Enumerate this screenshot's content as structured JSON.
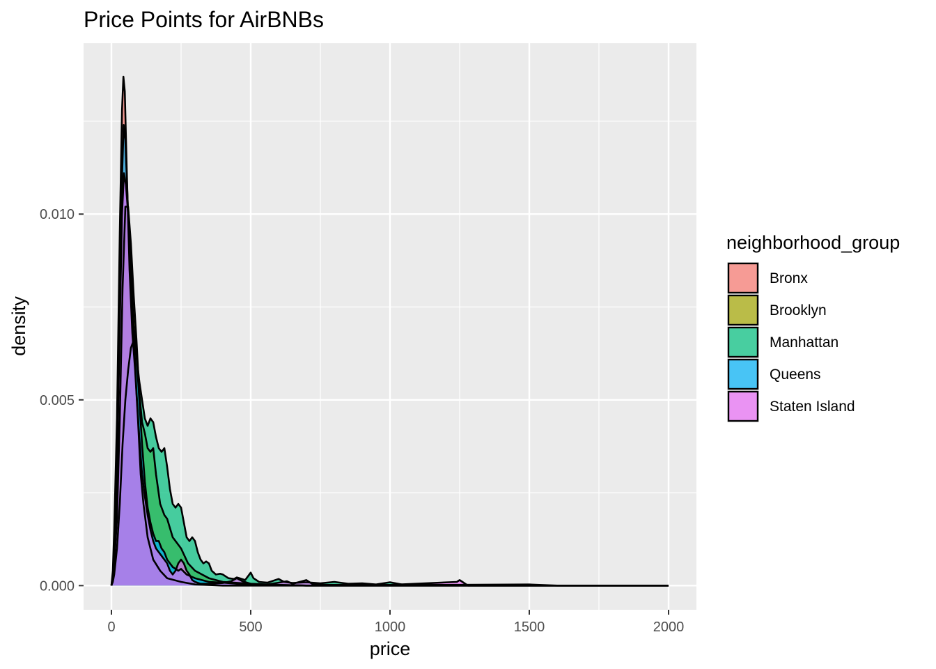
{
  "chart_data": {
    "type": "area",
    "subtype": "density",
    "title": "Price Points for AirBNBs",
    "xlabel": "price",
    "ylabel": "density",
    "xlim": [
      -100,
      2100
    ],
    "ylim": [
      -0.00065,
      0.0146
    ],
    "x_ticks": [
      0,
      500,
      1000,
      1500,
      2000
    ],
    "x_tick_labels": [
      "0",
      "500",
      "1000",
      "1500",
      "2000"
    ],
    "y_ticks": [
      0,
      0.005,
      0.01
    ],
    "y_tick_labels": [
      "0.000",
      "0.005",
      "0.010"
    ],
    "x_minor_ticks": [
      250,
      750,
      1250,
      1750
    ],
    "y_minor_ticks": [
      0.0025,
      0.0075,
      0.0125
    ],
    "grid": true,
    "legend_title": "neighborhood_group",
    "legend_position": "right",
    "series": [
      {
        "name": "Bronx",
        "color": "#F8766D",
        "points": [
          [
            0,
            0
          ],
          [
            5,
            0.0004
          ],
          [
            10,
            0.0015
          ],
          [
            20,
            0.0045
          ],
          [
            30,
            0.0095
          ],
          [
            38,
            0.0128
          ],
          [
            43,
            0.0137
          ],
          [
            48,
            0.0133
          ],
          [
            55,
            0.0112
          ],
          [
            65,
            0.0085
          ],
          [
            75,
            0.0068
          ],
          [
            85,
            0.0058
          ],
          [
            95,
            0.0045
          ],
          [
            105,
            0.003
          ],
          [
            115,
            0.0022
          ],
          [
            130,
            0.0013
          ],
          [
            150,
            0.0007
          ],
          [
            175,
            0.0004
          ],
          [
            200,
            0.0002
          ],
          [
            250,
            0.0001
          ],
          [
            300,
            3e-05
          ],
          [
            400,
            0
          ],
          [
            2000,
            0
          ]
        ]
      },
      {
        "name": "Brooklyn",
        "color": "#A3A500",
        "points": [
          [
            0,
            0
          ],
          [
            5,
            0.0002
          ],
          [
            10,
            0.0006
          ],
          [
            20,
            0.0018
          ],
          [
            30,
            0.0045
          ],
          [
            40,
            0.008
          ],
          [
            50,
            0.0102
          ],
          [
            60,
            0.0102
          ],
          [
            70,
            0.0092
          ],
          [
            80,
            0.0078
          ],
          [
            90,
            0.0066
          ],
          [
            100,
            0.0052
          ],
          [
            110,
            0.0044
          ],
          [
            120,
            0.0041
          ],
          [
            130,
            0.0037
          ],
          [
            140,
            0.0036
          ],
          [
            150,
            0.0037
          ],
          [
            160,
            0.003
          ],
          [
            175,
            0.0022
          ],
          [
            190,
            0.0019
          ],
          [
            200,
            0.0018
          ],
          [
            220,
            0.0013
          ],
          [
            250,
            0.001
          ],
          [
            275,
            0.0006
          ],
          [
            300,
            0.0004
          ],
          [
            350,
            0.0002
          ],
          [
            400,
            0.0001
          ],
          [
            500,
            5e-05
          ],
          [
            600,
            2e-05
          ],
          [
            700,
            0
          ],
          [
            2000,
            0
          ]
        ]
      },
      {
        "name": "Manhattan",
        "color": "#00BF7D",
        "points": [
          [
            0,
            0
          ],
          [
            5,
            0.0001
          ],
          [
            10,
            0.0003
          ],
          [
            20,
            0.001
          ],
          [
            30,
            0.0022
          ],
          [
            40,
            0.0038
          ],
          [
            50,
            0.005
          ],
          [
            60,
            0.0058
          ],
          [
            70,
            0.0064
          ],
          [
            80,
            0.0066
          ],
          [
            90,
            0.0062
          ],
          [
            100,
            0.0055
          ],
          [
            110,
            0.005
          ],
          [
            120,
            0.0045
          ],
          [
            130,
            0.0043
          ],
          [
            140,
            0.0045
          ],
          [
            150,
            0.0044
          ],
          [
            160,
            0.004
          ],
          [
            170,
            0.0037
          ],
          [
            180,
            0.0036
          ],
          [
            190,
            0.0037
          ],
          [
            200,
            0.0032
          ],
          [
            210,
            0.0026
          ],
          [
            220,
            0.0022
          ],
          [
            230,
            0.0021
          ],
          [
            240,
            0.0022
          ],
          [
            250,
            0.0021
          ],
          [
            260,
            0.0017
          ],
          [
            270,
            0.0013
          ],
          [
            280,
            0.0012
          ],
          [
            290,
            0.0013
          ],
          [
            300,
            0.0012
          ],
          [
            310,
            0.0009
          ],
          [
            320,
            0.0007
          ],
          [
            330,
            0.0006
          ],
          [
            340,
            0.00065
          ],
          [
            350,
            0.0006
          ],
          [
            360,
            0.0004
          ],
          [
            375,
            0.0003
          ],
          [
            390,
            0.00032
          ],
          [
            400,
            0.0003
          ],
          [
            420,
            0.0002
          ],
          [
            440,
            0.00018
          ],
          [
            450,
            0.00022
          ],
          [
            460,
            0.0002
          ],
          [
            480,
            0.00015
          ],
          [
            500,
            0.00035
          ],
          [
            510,
            0.0002
          ],
          [
            530,
            0.0001
          ],
          [
            560,
            8e-05
          ],
          [
            600,
            0.00018
          ],
          [
            620,
            0.0001
          ],
          [
            650,
            7e-05
          ],
          [
            700,
            9e-05
          ],
          [
            750,
            6e-05
          ],
          [
            800,
            0.0001
          ],
          [
            850,
            5e-05
          ],
          [
            900,
            6e-05
          ],
          [
            950,
            3e-05
          ],
          [
            1000,
            9e-05
          ],
          [
            1050,
            2e-05
          ],
          [
            1200,
            2e-05
          ],
          [
            1500,
            3e-05
          ],
          [
            1600,
            0
          ],
          [
            2000,
            0
          ]
        ]
      },
      {
        "name": "Queens",
        "color": "#00B0F6",
        "points": [
          [
            0,
            0
          ],
          [
            5,
            0.0003
          ],
          [
            10,
            0.001
          ],
          [
            20,
            0.0032
          ],
          [
            30,
            0.0075
          ],
          [
            38,
            0.011
          ],
          [
            44,
            0.0124
          ],
          [
            50,
            0.012
          ],
          [
            58,
            0.0104
          ],
          [
            68,
            0.0086
          ],
          [
            80,
            0.007
          ],
          [
            90,
            0.0062
          ],
          [
            100,
            0.005
          ],
          [
            110,
            0.0038
          ],
          [
            120,
            0.0028
          ],
          [
            130,
            0.0021
          ],
          [
            140,
            0.0017
          ],
          [
            150,
            0.0014
          ],
          [
            160,
            0.0012
          ],
          [
            170,
            0.0012
          ],
          [
            180,
            0.001
          ],
          [
            190,
            0.0009
          ],
          [
            200,
            0.0007
          ],
          [
            220,
            0.0005
          ],
          [
            240,
            0.0004
          ],
          [
            250,
            0.00045
          ],
          [
            270,
            0.0003
          ],
          [
            300,
            0.0002
          ],
          [
            350,
            0.0001
          ],
          [
            400,
            8e-05
          ],
          [
            450,
            5e-05
          ],
          [
            500,
            3e-05
          ],
          [
            600,
            2e-05
          ],
          [
            700,
            0
          ],
          [
            2000,
            0
          ]
        ]
      },
      {
        "name": "Staten Island",
        "color": "#E76BF3",
        "points": [
          [
            0,
            0
          ],
          [
            5,
            0.0002
          ],
          [
            10,
            0.0008
          ],
          [
            20,
            0.003
          ],
          [
            30,
            0.007
          ],
          [
            38,
            0.01
          ],
          [
            45,
            0.0111
          ],
          [
            52,
            0.0108
          ],
          [
            60,
            0.01
          ],
          [
            70,
            0.0085
          ],
          [
            80,
            0.0068
          ],
          [
            90,
            0.0052
          ],
          [
            100,
            0.004
          ],
          [
            110,
            0.003
          ],
          [
            120,
            0.0024
          ],
          [
            130,
            0.0019
          ],
          [
            140,
            0.0015
          ],
          [
            150,
            0.0012
          ],
          [
            160,
            0.001
          ],
          [
            170,
            0.0009
          ],
          [
            180,
            0.0008
          ],
          [
            190,
            0.0007
          ],
          [
            200,
            0.0006
          ],
          [
            210,
            0.0004
          ],
          [
            220,
            0.0003
          ],
          [
            230,
            0.0004
          ],
          [
            240,
            0.0006
          ],
          [
            250,
            0.0007
          ],
          [
            260,
            0.0006
          ],
          [
            270,
            0.0004
          ],
          [
            280,
            0.0003
          ],
          [
            290,
            0.00015
          ],
          [
            300,
            0.0001
          ],
          [
            320,
            5e-05
          ],
          [
            350,
            5e-05
          ],
          [
            400,
            7e-05
          ],
          [
            430,
            0.00012
          ],
          [
            450,
            0.0002
          ],
          [
            470,
            0.00012
          ],
          [
            500,
            5e-05
          ],
          [
            550,
            2e-05
          ],
          [
            600,
            8e-05
          ],
          [
            630,
            0.00012
          ],
          [
            650,
            5e-05
          ],
          [
            700,
            0.00015
          ],
          [
            720,
            5e-05
          ],
          [
            750,
            2e-05
          ],
          [
            1000,
            2e-05
          ],
          [
            1240,
            0.0001
          ],
          [
            1250,
            0.00015
          ],
          [
            1260,
            0.0001
          ],
          [
            1280,
            0
          ],
          [
            2000,
            0
          ]
        ]
      }
    ]
  }
}
